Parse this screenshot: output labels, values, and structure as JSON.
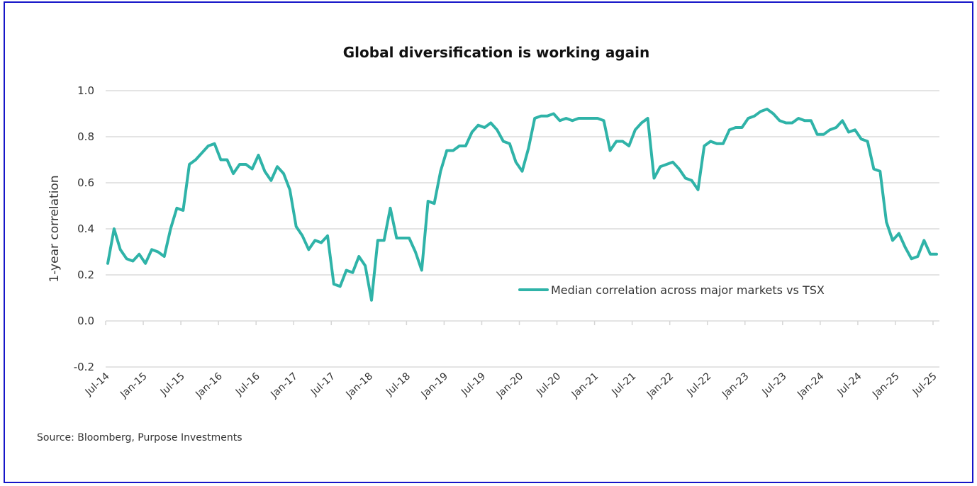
{
  "chart_data": {
    "type": "line",
    "title": "Global diversification is working again",
    "xlabel": "",
    "ylabel": "1-year correlation",
    "ylim": [
      -0.2,
      1.0
    ],
    "yticks": [
      "1.0",
      "0.8",
      "0.6",
      "0.4",
      "0.2",
      "0.0",
      "-0.2"
    ],
    "ytick_values": [
      1.0,
      0.8,
      0.6,
      0.4,
      0.2,
      0.0,
      -0.2
    ],
    "xticks": [
      "Jul-14",
      "Jan-15",
      "Jul-15",
      "Jan-16",
      "Jul-16",
      "Jan-17",
      "Jul-17",
      "Jan-18",
      "Jul-18",
      "Jan-19",
      "Jul-19",
      "Jan-20",
      "Jul-20",
      "Jan-21",
      "Jul-21",
      "Jan-22",
      "Jul-22",
      "Jan-23",
      "Jul-23",
      "Jan-24",
      "Jul-24",
      "Jan-25",
      "Jul-25"
    ],
    "x_start": "Jul-14",
    "x_end": "Jul-25",
    "x_frequency": "monthly",
    "grid": true,
    "legend_position": "lower-right",
    "series": [
      {
        "name": "Median correlation across major markets vs TSX",
        "color": "#2fb3a8",
        "values": [
          0.25,
          0.4,
          0.31,
          0.27,
          0.26,
          0.29,
          0.25,
          0.31,
          0.3,
          0.28,
          0.4,
          0.49,
          0.48,
          0.68,
          0.7,
          0.73,
          0.76,
          0.77,
          0.7,
          0.7,
          0.64,
          0.68,
          0.68,
          0.66,
          0.72,
          0.65,
          0.61,
          0.67,
          0.64,
          0.57,
          0.41,
          0.37,
          0.31,
          0.35,
          0.34,
          0.37,
          0.16,
          0.15,
          0.22,
          0.21,
          0.28,
          0.24,
          0.09,
          0.35,
          0.35,
          0.49,
          0.36,
          0.36,
          0.36,
          0.3,
          0.22,
          0.52,
          0.51,
          0.65,
          0.74,
          0.74,
          0.76,
          0.76,
          0.82,
          0.85,
          0.84,
          0.86,
          0.83,
          0.78,
          0.77,
          0.69,
          0.65,
          0.75,
          0.88,
          0.89,
          0.89,
          0.9,
          0.87,
          0.88,
          0.87,
          0.88,
          0.88,
          0.88,
          0.88,
          0.87,
          0.74,
          0.78,
          0.78,
          0.76,
          0.83,
          0.86,
          0.88,
          0.62,
          0.67,
          0.68,
          0.69,
          0.66,
          0.62,
          0.61,
          0.57,
          0.76,
          0.78,
          0.77,
          0.77,
          0.83,
          0.84,
          0.84,
          0.88,
          0.89,
          0.91,
          0.92,
          0.9,
          0.87,
          0.86,
          0.86,
          0.88,
          0.87,
          0.87,
          0.81,
          0.81,
          0.83,
          0.84,
          0.87,
          0.82,
          0.83,
          0.79,
          0.78,
          0.66,
          0.65,
          0.43,
          0.35,
          0.38,
          0.32,
          0.27,
          0.28,
          0.35,
          0.29,
          0.29
        ]
      }
    ],
    "source": "Source: Bloomberg, Purpose Investments"
  },
  "colors": {
    "frame_border": "#1515c8",
    "line": "#2fb3a8",
    "grid": "#dcdcdc",
    "text": "#333333"
  }
}
